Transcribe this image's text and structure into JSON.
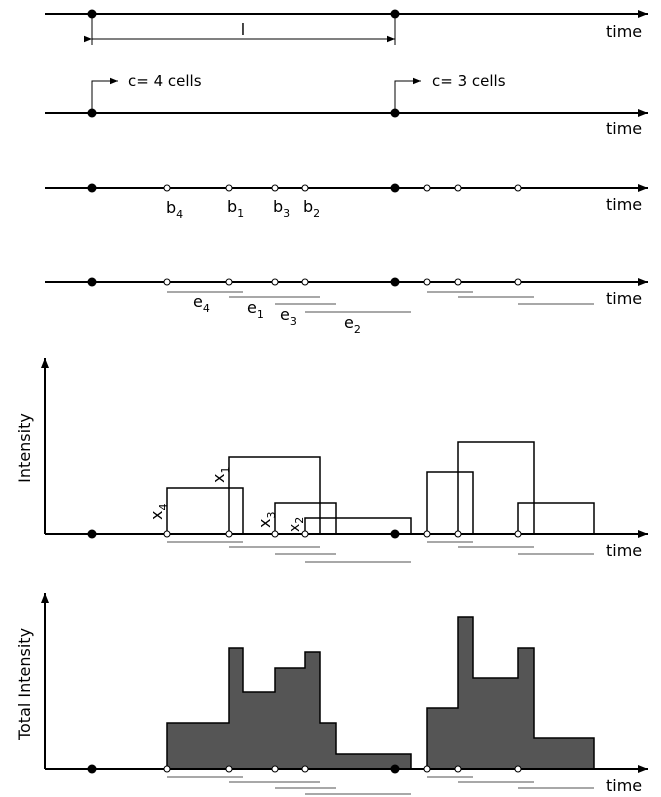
{
  "time_label": "time",
  "interval_label": "l",
  "cells_first": "c= 4 cells",
  "cells_second": "c= 3 cells",
  "begin_labels": [
    {
      "base": "b",
      "sub": "4"
    },
    {
      "base": "b",
      "sub": "1"
    },
    {
      "base": "b",
      "sub": "3"
    },
    {
      "base": "b",
      "sub": "2"
    }
  ],
  "end_labels": [
    {
      "base": "e",
      "sub": "4"
    },
    {
      "base": "e",
      "sub": "1"
    },
    {
      "base": "e",
      "sub": "3"
    },
    {
      "base": "e",
      "sub": "2"
    }
  ],
  "intensity_labels": [
    {
      "base": "x",
      "sub": "4"
    },
    {
      "base": "x",
      "sub": "1"
    },
    {
      "base": "x",
      "sub": "3"
    },
    {
      "base": "x",
      "sub": "2"
    }
  ],
  "y_label_intensity": "Intensity",
  "y_label_total": "Total Intensity",
  "colors": {
    "ink": "#000000",
    "bar_gray": "#a8a8a8",
    "fill": "#555555"
  }
}
